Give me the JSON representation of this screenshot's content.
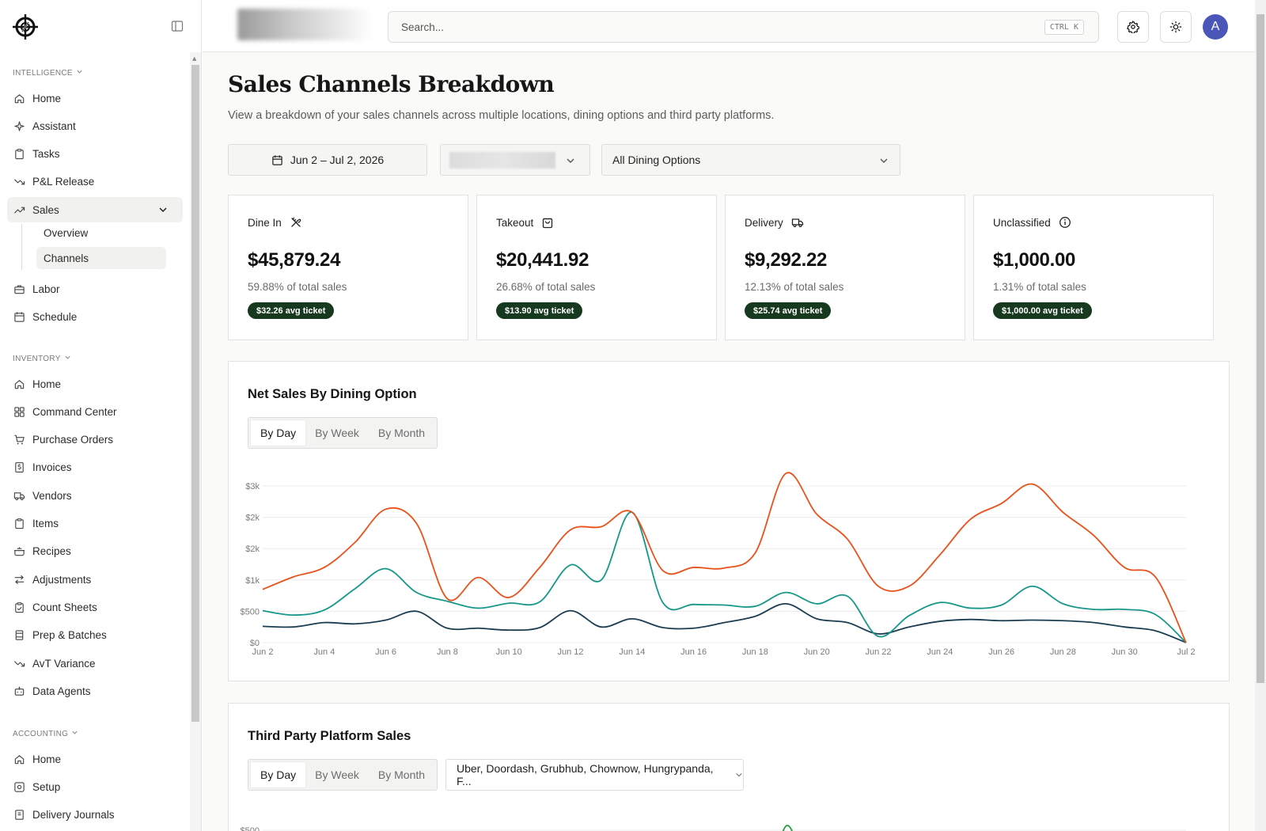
{
  "app": {
    "user_initial": "A"
  },
  "sidebar": {
    "sections": [
      {
        "label": "Intelligence",
        "items": [
          {
            "label": "Home",
            "icon": "home-icon"
          },
          {
            "label": "Assistant",
            "icon": "sparkle-icon"
          },
          {
            "label": "Tasks",
            "icon": "clipboard-icon"
          },
          {
            "label": "P&L Release",
            "icon": "trend-down-icon"
          },
          {
            "label": "Sales",
            "icon": "trend-up-icon",
            "expanded": true,
            "children": [
              {
                "label": "Overview"
              },
              {
                "label": "Channels",
                "active": true
              }
            ]
          },
          {
            "label": "Labor",
            "icon": "briefcase-icon"
          },
          {
            "label": "Schedule",
            "icon": "calendar-icon"
          }
        ]
      },
      {
        "label": "Inventory",
        "items": [
          {
            "label": "Home",
            "icon": "home-icon"
          },
          {
            "label": "Command Center",
            "icon": "grid-icon"
          },
          {
            "label": "Purchase Orders",
            "icon": "cart-icon"
          },
          {
            "label": "Invoices",
            "icon": "invoice-icon"
          },
          {
            "label": "Vendors",
            "icon": "truck-icon"
          },
          {
            "label": "Items",
            "icon": "clipboard-icon"
          },
          {
            "label": "Recipes",
            "icon": "cooking-pot-icon"
          },
          {
            "label": "Adjustments",
            "icon": "arrows-icon"
          },
          {
            "label": "Count Sheets",
            "icon": "clipboard-check-icon"
          },
          {
            "label": "Prep & Batches",
            "icon": "container-icon"
          },
          {
            "label": "AvT Variance",
            "icon": "trend-down-icon"
          },
          {
            "label": "Data Agents",
            "icon": "bot-icon"
          }
        ]
      },
      {
        "label": "Accounting",
        "items": [
          {
            "label": "Home",
            "icon": "home-icon"
          },
          {
            "label": "Setup",
            "icon": "setup-icon"
          },
          {
            "label": "Delivery Journals",
            "icon": "journal-icon"
          }
        ]
      }
    ]
  },
  "topbar": {
    "search_placeholder": "Search...",
    "shortcut": "CTRL K"
  },
  "page": {
    "title": "Sales Channels Breakdown",
    "subtitle": "View a breakdown of your sales channels across multiple locations, dining options and third party platforms.",
    "filters": {
      "date_range": "Jun 2 – Jul 2, 2026",
      "location": "",
      "dining_option": "All Dining Options"
    }
  },
  "cards": [
    {
      "label": "Dine In",
      "icon": "utensils-crossed-icon",
      "value": "$45,879.24",
      "pct": "59.88% of total sales",
      "badge": "$32.26 avg ticket"
    },
    {
      "label": "Takeout",
      "icon": "shopping-bag-icon",
      "value": "$20,441.92",
      "pct": "26.68% of total sales",
      "badge": "$13.90 avg ticket"
    },
    {
      "label": "Delivery",
      "icon": "truck-icon",
      "value": "$9,292.22",
      "pct": "12.13% of total sales",
      "badge": "$25.74 avg ticket"
    },
    {
      "label": "Unclassified",
      "icon": "info-icon",
      "value": "$1,000.00",
      "pct": "1.31% of total sales",
      "badge": "$1,000.00 avg ticket"
    }
  ],
  "net_sales": {
    "title": "Net Sales By Dining Option",
    "tabs": [
      "By Day",
      "By Week",
      "By Month"
    ],
    "selected_tab": "By Day"
  },
  "third_party": {
    "title": "Third Party Platform Sales",
    "tabs": [
      "By Day",
      "By Week",
      "By Month"
    ],
    "selected_tab": "By Day",
    "platforms": "Uber, Doordash, Grubhub, Chownow, Hungrypanda, F..."
  },
  "chart_data": [
    {
      "type": "line",
      "title": "Net Sales By Dining Option",
      "x_ticks": [
        "Jun 2",
        "Jun 4",
        "Jun 6",
        "Jun 8",
        "Jun 10",
        "Jun 12",
        "Jun 14",
        "Jun 16",
        "Jun 18",
        "Jun 20",
        "Jun 22",
        "Jun 24",
        "Jun 26",
        "Jun 28",
        "Jun 30",
        "Jul 2"
      ],
      "y_ticks": [
        "$0",
        "$500",
        "$1k",
        "$2k",
        "$2k",
        "$3k"
      ],
      "y_tick_values": [
        0,
        500,
        1000,
        1500,
        2000,
        2500
      ],
      "ylim": [
        0,
        2500
      ],
      "grid": true,
      "x": [
        "Jun 2",
        "Jun 3",
        "Jun 4",
        "Jun 5",
        "Jun 6",
        "Jun 7",
        "Jun 8",
        "Jun 9",
        "Jun 10",
        "Jun 11",
        "Jun 12",
        "Jun 13",
        "Jun 14",
        "Jun 15",
        "Jun 16",
        "Jun 17",
        "Jun 18",
        "Jun 19",
        "Jun 20",
        "Jun 21",
        "Jun 22",
        "Jun 23",
        "Jun 24",
        "Jun 25",
        "Jun 26",
        "Jun 27",
        "Jun 28",
        "Jun 29",
        "Jun 30",
        "Jul 1",
        "Jul 2"
      ],
      "series": [
        {
          "color": "#e8521a",
          "values": [
            850,
            1050,
            1200,
            1600,
            2130,
            1900,
            700,
            1040,
            720,
            1200,
            1800,
            1850,
            2080,
            1150,
            1200,
            1190,
            1430,
            2700,
            2050,
            1650,
            900,
            900,
            1400,
            1970,
            2220,
            2530,
            2080,
            1710,
            1200,
            1050,
            0
          ]
        },
        {
          "color": "#17978a",
          "values": [
            510,
            440,
            520,
            860,
            1180,
            800,
            660,
            550,
            630,
            650,
            1240,
            1000,
            2080,
            640,
            610,
            600,
            580,
            800,
            620,
            740,
            100,
            430,
            640,
            550,
            600,
            900,
            620,
            530,
            530,
            450,
            0
          ]
        },
        {
          "color": "#1a3d52",
          "values": [
            260,
            250,
            320,
            300,
            360,
            500,
            230,
            230,
            200,
            240,
            510,
            250,
            380,
            240,
            230,
            320,
            420,
            620,
            380,
            320,
            140,
            250,
            340,
            370,
            350,
            360,
            350,
            320,
            250,
            190,
            0
          ]
        }
      ]
    },
    {
      "type": "line",
      "title": "Third Party Platform Sales",
      "y_ticks": [
        "$500"
      ],
      "series": [
        {
          "color": "#1f9a3a",
          "values": []
        }
      ]
    }
  ],
  "colors": {
    "badge_bg": "#17391f",
    "dine_in_line": "#e8521a",
    "takeout_line": "#17978a",
    "delivery_line": "#1a3d52",
    "third_party_line": "#1f9a3a",
    "avatar": "#4a56b8"
  }
}
